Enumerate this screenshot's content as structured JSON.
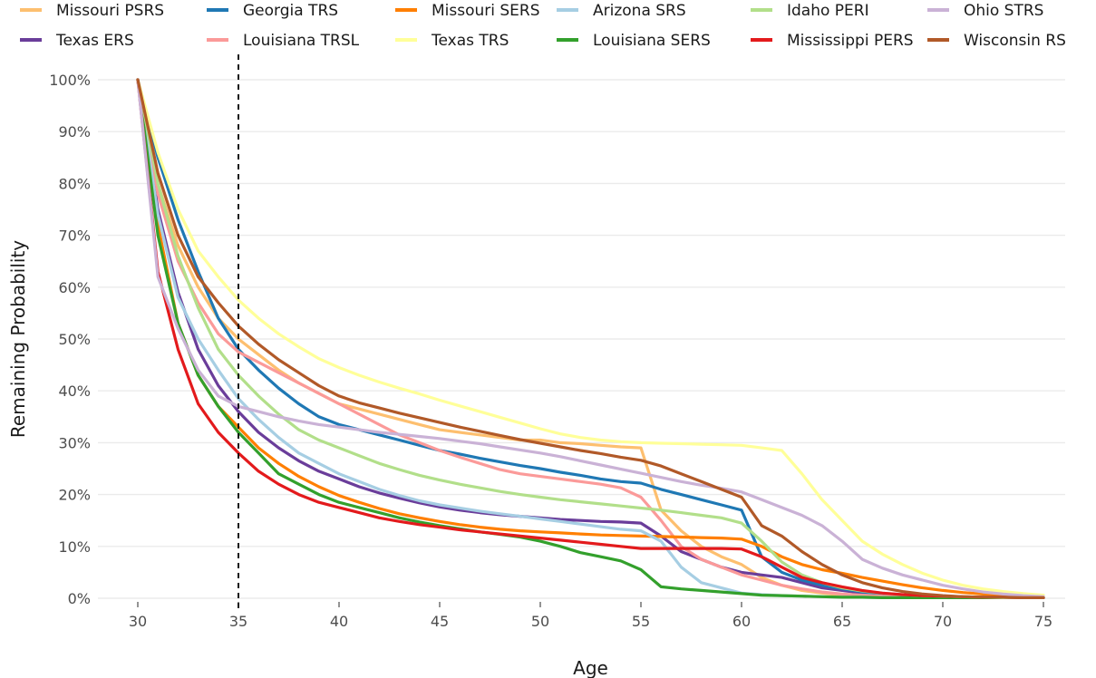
{
  "chart_data": {
    "type": "line",
    "title": "",
    "xlabel": "Age",
    "ylabel": "Remaining Probability",
    "xlim": [
      30,
      75
    ],
    "ylim": [
      0,
      1
    ],
    "x_ticks": [
      30,
      35,
      40,
      45,
      50,
      55,
      60,
      65,
      70,
      75
    ],
    "y_ticks": [
      0,
      0.1,
      0.2,
      0.3,
      0.4,
      0.5,
      0.6,
      0.7,
      0.8,
      0.9,
      1.0
    ],
    "y_tick_labels": [
      "0%",
      "10%",
      "20%",
      "30%",
      "40%",
      "50%",
      "60%",
      "70%",
      "80%",
      "90%",
      "100%"
    ],
    "x_tick_labels": [
      "30",
      "35",
      "40",
      "45",
      "50",
      "55",
      "60",
      "65",
      "70",
      "75"
    ],
    "grid": true,
    "legend_position": "top",
    "reference_line": {
      "x": 35,
      "style": "dashed"
    },
    "x": [
      30,
      31,
      32,
      33,
      34,
      35,
      36,
      37,
      38,
      39,
      40,
      41,
      42,
      43,
      44,
      45,
      46,
      47,
      48,
      49,
      50,
      51,
      52,
      53,
      54,
      55,
      56,
      57,
      58,
      59,
      60,
      61,
      62,
      63,
      64,
      65,
      66,
      67,
      68,
      69,
      70,
      71,
      72,
      73,
      74,
      75
    ],
    "series": [
      {
        "name": "Missouri PSRS",
        "color": "#fdbf6f",
        "values": [
          1.0,
          0.8,
          0.68,
          0.6,
          0.54,
          0.5,
          0.47,
          0.44,
          0.415,
          0.395,
          0.375,
          0.365,
          0.355,
          0.345,
          0.335,
          0.325,
          0.32,
          0.315,
          0.31,
          0.305,
          0.305,
          0.3,
          0.298,
          0.295,
          0.292,
          0.29,
          0.17,
          0.13,
          0.1,
          0.08,
          0.065,
          0.04,
          0.025,
          0.015,
          0.01,
          0.006,
          0.004,
          0.003,
          0.002,
          0.002,
          0.001,
          0.001,
          0.001,
          0.001,
          0.001,
          0.001
        ]
      },
      {
        "name": "Texas ERS",
        "color": "#6a3d9a",
        "values": [
          1.0,
          0.75,
          0.59,
          0.48,
          0.41,
          0.36,
          0.32,
          0.29,
          0.265,
          0.245,
          0.23,
          0.215,
          0.203,
          0.193,
          0.184,
          0.176,
          0.17,
          0.165,
          0.161,
          0.158,
          0.155,
          0.152,
          0.15,
          0.148,
          0.147,
          0.145,
          0.12,
          0.09,
          0.075,
          0.06,
          0.05,
          0.045,
          0.04,
          0.03,
          0.02,
          0.015,
          0.01,
          0.007,
          0.005,
          0.003,
          0.002,
          0.002,
          0.001,
          0.001,
          0.001,
          0.001
        ]
      },
      {
        "name": "Georgia TRS",
        "color": "#1f78b4",
        "values": [
          1.0,
          0.85,
          0.73,
          0.63,
          0.54,
          0.48,
          0.44,
          0.405,
          0.375,
          0.35,
          0.335,
          0.325,
          0.315,
          0.305,
          0.295,
          0.285,
          0.278,
          0.27,
          0.263,
          0.256,
          0.25,
          0.243,
          0.237,
          0.23,
          0.225,
          0.222,
          0.21,
          0.2,
          0.19,
          0.18,
          0.17,
          0.08,
          0.05,
          0.035,
          0.025,
          0.018,
          0.012,
          0.008,
          0.005,
          0.004,
          0.003,
          0.002,
          0.002,
          0.001,
          0.001,
          0.001
        ]
      },
      {
        "name": "Louisiana TRSL",
        "color": "#fb9a99",
        "values": [
          1.0,
          0.78,
          0.65,
          0.57,
          0.51,
          0.475,
          0.455,
          0.435,
          0.415,
          0.395,
          0.375,
          0.355,
          0.335,
          0.315,
          0.3,
          0.285,
          0.272,
          0.26,
          0.248,
          0.24,
          0.235,
          0.23,
          0.225,
          0.22,
          0.213,
          0.195,
          0.15,
          0.1,
          0.075,
          0.06,
          0.045,
          0.035,
          0.025,
          0.018,
          0.012,
          0.008,
          0.006,
          0.004,
          0.003,
          0.002,
          0.002,
          0.001,
          0.001,
          0.001,
          0.001,
          0.001
        ]
      },
      {
        "name": "Missouri SERS",
        "color": "#ff7f00",
        "values": [
          1.0,
          0.72,
          0.53,
          0.43,
          0.37,
          0.33,
          0.29,
          0.26,
          0.235,
          0.215,
          0.198,
          0.185,
          0.173,
          0.163,
          0.155,
          0.148,
          0.142,
          0.137,
          0.133,
          0.13,
          0.128,
          0.126,
          0.124,
          0.122,
          0.121,
          0.12,
          0.119,
          0.118,
          0.117,
          0.116,
          0.114,
          0.1,
          0.08,
          0.065,
          0.055,
          0.048,
          0.04,
          0.033,
          0.026,
          0.02,
          0.015,
          0.011,
          0.008,
          0.005,
          0.003,
          0.002
        ]
      },
      {
        "name": "Texas TRS",
        "color": "#ffff99",
        "values": [
          1.0,
          0.86,
          0.75,
          0.67,
          0.62,
          0.575,
          0.54,
          0.51,
          0.485,
          0.462,
          0.445,
          0.43,
          0.417,
          0.405,
          0.394,
          0.382,
          0.371,
          0.36,
          0.349,
          0.338,
          0.327,
          0.317,
          0.31,
          0.305,
          0.302,
          0.3,
          0.299,
          0.298,
          0.297,
          0.296,
          0.295,
          0.29,
          0.285,
          0.24,
          0.19,
          0.15,
          0.11,
          0.085,
          0.065,
          0.048,
          0.035,
          0.025,
          0.018,
          0.013,
          0.009,
          0.006
        ]
      },
      {
        "name": "Arizona SRS",
        "color": "#a6cee3",
        "values": [
          1.0,
          0.74,
          0.58,
          0.5,
          0.44,
          0.385,
          0.345,
          0.31,
          0.28,
          0.26,
          0.24,
          0.225,
          0.21,
          0.198,
          0.188,
          0.18,
          0.174,
          0.168,
          0.163,
          0.158,
          0.153,
          0.148,
          0.143,
          0.138,
          0.133,
          0.13,
          0.11,
          0.06,
          0.03,
          0.02,
          0.01,
          0.007,
          0.005,
          0.004,
          0.003,
          0.002,
          0.002,
          0.001,
          0.001,
          0.001,
          0.001,
          0.001,
          0.001,
          0.001,
          0.001,
          0.001
        ]
      },
      {
        "name": "Louisiana SERS",
        "color": "#33a02c",
        "values": [
          1.0,
          0.7,
          0.53,
          0.43,
          0.37,
          0.32,
          0.28,
          0.24,
          0.22,
          0.2,
          0.185,
          0.175,
          0.165,
          0.155,
          0.147,
          0.14,
          0.134,
          0.128,
          0.123,
          0.118,
          0.11,
          0.1,
          0.088,
          0.08,
          0.072,
          0.055,
          0.022,
          0.018,
          0.015,
          0.012,
          0.009,
          0.006,
          0.005,
          0.004,
          0.003,
          0.002,
          0.002,
          0.001,
          0.001,
          0.001,
          0.001,
          0.001,
          0.001,
          0.001,
          0.001,
          0.001
        ]
      },
      {
        "name": "Idaho PERI",
        "color": "#b2df8a",
        "values": [
          1.0,
          0.8,
          0.66,
          0.56,
          0.48,
          0.43,
          0.39,
          0.355,
          0.325,
          0.305,
          0.29,
          0.275,
          0.26,
          0.248,
          0.237,
          0.228,
          0.22,
          0.213,
          0.206,
          0.2,
          0.195,
          0.19,
          0.186,
          0.182,
          0.178,
          0.174,
          0.17,
          0.165,
          0.16,
          0.155,
          0.145,
          0.11,
          0.07,
          0.045,
          0.03,
          0.02,
          0.014,
          0.01,
          0.007,
          0.005,
          0.004,
          0.003,
          0.002,
          0.001,
          0.001,
          0.001
        ]
      },
      {
        "name": "Mississippi PERS",
        "color": "#e31a1c",
        "values": [
          1.0,
          0.63,
          0.48,
          0.375,
          0.32,
          0.28,
          0.245,
          0.22,
          0.2,
          0.185,
          0.175,
          0.165,
          0.155,
          0.148,
          0.142,
          0.137,
          0.132,
          0.128,
          0.124,
          0.12,
          0.116,
          0.112,
          0.108,
          0.104,
          0.1,
          0.096,
          0.096,
          0.096,
          0.096,
          0.096,
          0.095,
          0.08,
          0.06,
          0.04,
          0.03,
          0.022,
          0.015,
          0.01,
          0.007,
          0.005,
          0.004,
          0.003,
          0.002,
          0.002,
          0.001,
          0.001
        ]
      },
      {
        "name": "Ohio STRS",
        "color": "#cab2d6",
        "values": [
          1.0,
          0.62,
          0.52,
          0.44,
          0.39,
          0.37,
          0.36,
          0.35,
          0.342,
          0.335,
          0.33,
          0.325,
          0.32,
          0.316,
          0.312,
          0.308,
          0.303,
          0.298,
          0.292,
          0.286,
          0.28,
          0.273,
          0.265,
          0.257,
          0.249,
          0.241,
          0.233,
          0.225,
          0.218,
          0.212,
          0.205,
          0.19,
          0.175,
          0.16,
          0.14,
          0.11,
          0.075,
          0.058,
          0.045,
          0.035,
          0.025,
          0.018,
          0.012,
          0.008,
          0.005,
          0.003
        ]
      },
      {
        "name": "Wisconsin RS",
        "color": "#b15928",
        "values": [
          1.0,
          0.82,
          0.7,
          0.62,
          0.57,
          0.525,
          0.49,
          0.46,
          0.435,
          0.41,
          0.39,
          0.377,
          0.367,
          0.357,
          0.348,
          0.339,
          0.33,
          0.322,
          0.314,
          0.306,
          0.299,
          0.292,
          0.285,
          0.279,
          0.272,
          0.266,
          0.255,
          0.24,
          0.225,
          0.21,
          0.195,
          0.14,
          0.12,
          0.09,
          0.065,
          0.045,
          0.03,
          0.02,
          0.013,
          0.008,
          0.005,
          0.003,
          0.002,
          0.002,
          0.001,
          0.001
        ]
      }
    ]
  }
}
